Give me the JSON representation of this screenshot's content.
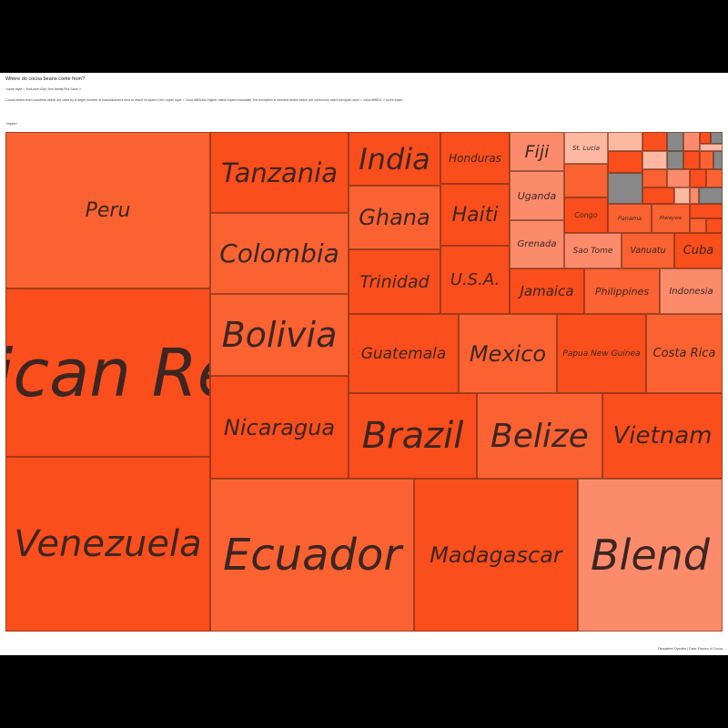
{
  "header": {
    "title": "Where do cocoa beans come from?",
    "raw_span_open": "<span style = 'font-size:43pt; font-family:Fira Sans;'>",
    "subtitle": "Cocoa beans from countries which are used by a larger number of manufacturers tend to result in<span></br><span style = 'color:#6f0c6a'>higher rated</span>chocolate.The exception is blended beans which are commonly used but<span style = 'color:#ff6f22;'> score lower.",
    "raw_span_close": "</span>",
    "credit": "Oluwafemi Oyedele | Data: Flavors of Cocoa"
  },
  "colors": {
    "dark": "#fa4e1c",
    "mid": "#fb6232",
    "light": "#fc8b6c",
    "pale": "#fdb8a2",
    "grey": "#888888"
  },
  "chart_data": {
    "type": "treemap",
    "title": "Where do cocoa beans come from?",
    "tiles": [
      {
        "name": "Peru",
        "shade": "mid"
      },
      {
        "name": "Venezuela",
        "shade": "dark"
      },
      {
        "name": "Dominican Republic",
        "shade": "dark"
      },
      {
        "name": "Ecuador",
        "shade": "mid"
      },
      {
        "name": "Madagascar",
        "shade": "dark"
      },
      {
        "name": "Blend",
        "shade": "light"
      },
      {
        "name": "Tanzania",
        "shade": "dark"
      },
      {
        "name": "Colombia",
        "shade": "mid"
      },
      {
        "name": "Bolivia",
        "shade": "mid"
      },
      {
        "name": "Nicaragua",
        "shade": "dark"
      },
      {
        "name": "Brazil",
        "shade": "dark"
      },
      {
        "name": "Belize",
        "shade": "mid"
      },
      {
        "name": "Vietnam",
        "shade": "dark"
      },
      {
        "name": "India",
        "shade": "dark"
      },
      {
        "name": "Ghana",
        "shade": "mid"
      },
      {
        "name": "Trinidad",
        "shade": "dark"
      },
      {
        "name": "Honduras",
        "shade": "dark"
      },
      {
        "name": "Haiti",
        "shade": "dark"
      },
      {
        "name": "U.S.A.",
        "shade": "dark"
      },
      {
        "name": "Guatemala",
        "shade": "dark"
      },
      {
        "name": "Mexico",
        "shade": "mid"
      },
      {
        "name": "Papua New Guinea",
        "shade": "dark"
      },
      {
        "name": "Costa Rica",
        "shade": "mid"
      },
      {
        "name": "Fiji",
        "shade": "light"
      },
      {
        "name": "Uganda",
        "shade": "light"
      },
      {
        "name": "Grenada",
        "shade": "light"
      },
      {
        "name": "St. Lucia",
        "shade": "pale"
      },
      {
        "name": "Congo",
        "shade": "dark"
      },
      {
        "name": "Panama",
        "shade": "mid"
      },
      {
        "name": "Malaysia",
        "shade": "mid"
      },
      {
        "name": "Sao Tome",
        "shade": "light"
      },
      {
        "name": "Vanuatu",
        "shade": "mid"
      },
      {
        "name": "Cuba",
        "shade": "dark"
      },
      {
        "name": "Jamaica",
        "shade": "dark"
      },
      {
        "name": "Philippines",
        "shade": "mid"
      },
      {
        "name": "Indonesia",
        "shade": "light"
      },
      {
        "name": "",
        "shade": "mid"
      },
      {
        "name": "",
        "shade": "pale"
      },
      {
        "name": "",
        "shade": "dark"
      },
      {
        "name": "",
        "shade": "grey"
      },
      {
        "name": "",
        "shade": "light"
      },
      {
        "name": "",
        "shade": "dark"
      },
      {
        "name": "",
        "shade": "grey"
      },
      {
        "name": "",
        "shade": "pale"
      },
      {
        "name": "",
        "shade": "dark"
      },
      {
        "name": "",
        "shade": "grey"
      },
      {
        "name": "",
        "shade": "pale"
      },
      {
        "name": "",
        "shade": "mid"
      },
      {
        "name": "",
        "shade": "dark"
      },
      {
        "name": "",
        "shade": "grey"
      },
      {
        "name": "",
        "shade": "light"
      },
      {
        "name": "",
        "shade": "dark"
      },
      {
        "name": "",
        "shade": "mid"
      },
      {
        "name": "",
        "shade": "grey"
      },
      {
        "name": "",
        "shade": "pale"
      },
      {
        "name": "",
        "shade": "dark"
      },
      {
        "name": "",
        "shade": "mid"
      },
      {
        "name": "",
        "shade": "light"
      },
      {
        "name": "",
        "shade": "grey"
      },
      {
        "name": "",
        "shade": "dark"
      },
      {
        "name": "",
        "shade": "mid"
      },
      {
        "name": "",
        "shade": "dark"
      }
    ]
  }
}
